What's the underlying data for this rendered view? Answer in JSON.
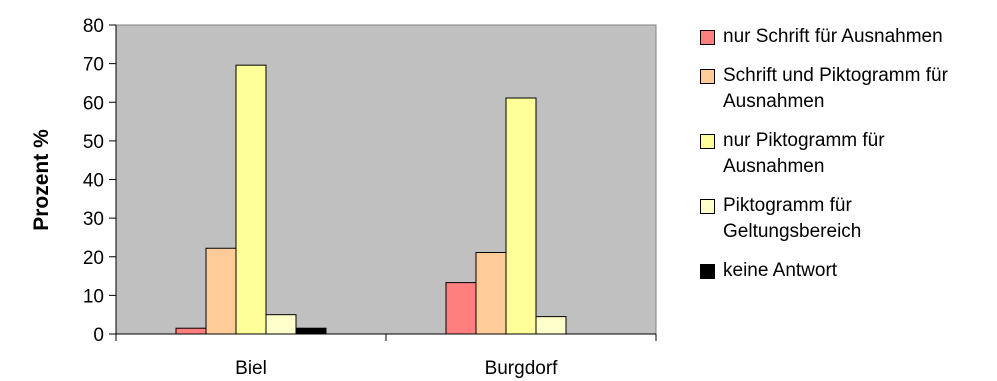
{
  "chart_data": {
    "type": "bar",
    "title": "",
    "xlabel": "",
    "ylabel": "Prozent %",
    "ylim": [
      0,
      80
    ],
    "yticks": [
      0,
      10,
      20,
      30,
      40,
      50,
      60,
      70,
      80
    ],
    "grid": false,
    "legend_position": "right",
    "plot_background": "#c0c0c0",
    "categories": [
      "Biel",
      "Burgdorf"
    ],
    "series": [
      {
        "name": "nur Schrift für Ausnahmen",
        "color": "#ff7f7f",
        "values": [
          1.5,
          13.3
        ]
      },
      {
        "name": "Schrift und Piktogramm für Ausnahmen",
        "color": "#ffcc99",
        "values": [
          22.2,
          21.1
        ]
      },
      {
        "name": "nur Piktogramm für Ausnahmen",
        "color": "#ffff99",
        "values": [
          69.6,
          61.1
        ]
      },
      {
        "name": "Piktogramm für Geltungsbereich",
        "color": "#ffffcc",
        "values": [
          5.0,
          4.5
        ]
      },
      {
        "name": "keine Antwort",
        "color": "#000000",
        "values": [
          1.5,
          0
        ]
      }
    ]
  }
}
